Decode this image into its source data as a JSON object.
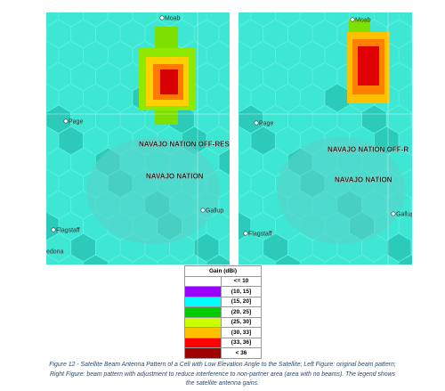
{
  "maps": [
    {
      "labels": [
        "Moab",
        "Page",
        "NAVAJO NATION OFF-RES",
        "NAVAJO NATION",
        "Gallup",
        "Flagstaff",
        "edona"
      ]
    },
    {
      "labels": [
        "Moab",
        "Page",
        "NAVAJO NATION OFF-R",
        "NAVAJO NATION",
        "Gallup",
        "Flagstaff"
      ]
    }
  ],
  "legend": {
    "title": "Gain (dBi)",
    "items": [
      {
        "label": "<= 10",
        "color": "#ffffff"
      },
      {
        "label": "(10, 15]",
        "color": "#9900ff"
      },
      {
        "label": "(15, 20]",
        "color": "#00ffff"
      },
      {
        "label": "(20, 25]",
        "color": "#00cc00"
      },
      {
        "label": "(25, 30]",
        "color": "#ccff00"
      },
      {
        "label": "(30, 33]",
        "color": "#ffc000"
      },
      {
        "label": "(33, 36]",
        "color": "#ff0000"
      },
      {
        "label": "< 36",
        "color": "#a00000"
      }
    ]
  },
  "caption": [
    "Figure 12 - Satellite Beam Antenna Pattern of a Cell with Low Elevation Angle to the Satellite; Left Figure: original beam pattern;",
    "Right Figure: beam pattern with adjustment to reduce interference to non-partner area (area with no beams). The legend shows",
    "the satellite antenna gains."
  ]
}
